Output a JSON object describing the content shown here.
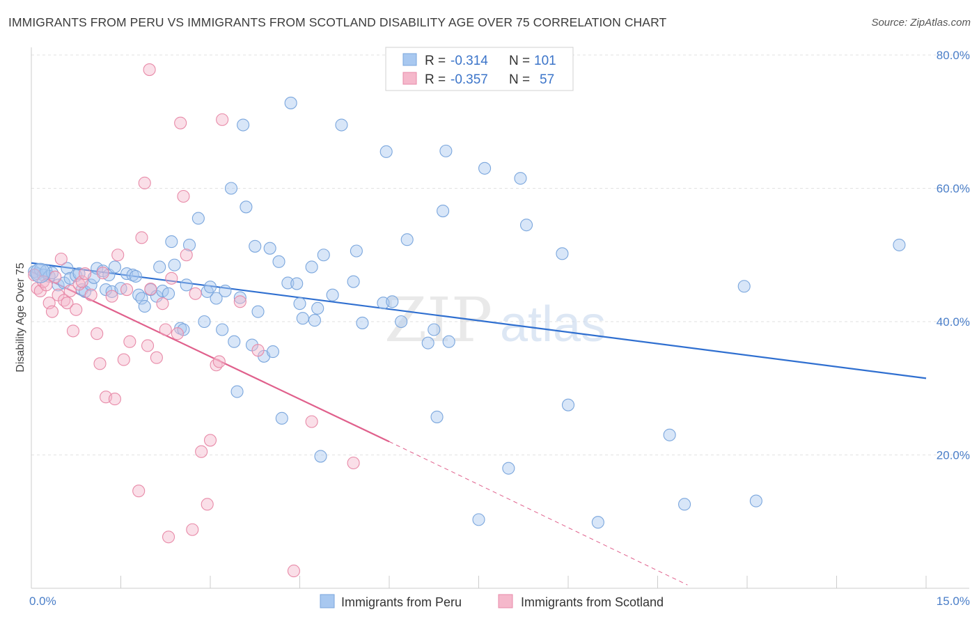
{
  "title": "IMMIGRANTS FROM PERU VS IMMIGRANTS FROM SCOTLAND DISABILITY AGE OVER 75 CORRELATION CHART",
  "source": "Source: ZipAtlas.com",
  "watermark": {
    "zip": "ZIP",
    "atlas": "atlas"
  },
  "legend": {
    "r_label": "R =",
    "n_label": "N =",
    "series": [
      {
        "r": "-0.314",
        "n": "101",
        "color": "#a8c8f0",
        "stroke": "#7aa6dd"
      },
      {
        "r": "-0.357",
        "n": "57",
        "color": "#f5b8cb",
        "stroke": "#e88aa8"
      }
    ]
  },
  "bottom_legend": [
    "Immigrants from Peru",
    "Immigrants from Scotland"
  ],
  "chart_data": {
    "type": "scatter",
    "title": "IMMIGRANTS FROM PERU VS IMMIGRANTS FROM SCOTLAND DISABILITY AGE OVER 75 CORRELATION CHART",
    "xlabel": "",
    "ylabel": "Disability Age Over 75",
    "xlim": [
      0,
      15
    ],
    "ylim": [
      0,
      80
    ],
    "x_tick_labels": [
      "0.0%",
      "15.0%"
    ],
    "y_ticks": [
      20,
      40,
      60,
      80
    ],
    "y_tick_labels": [
      "20.0%",
      "40.0%",
      "60.0%",
      "80.0%"
    ],
    "grid": true,
    "series": [
      {
        "name": "Immigrants from Peru",
        "color": "#7aa6dd",
        "fill": "#a8c8f0",
        "line_color": "#2f6fd0",
        "trend": [
          [
            0,
            48.8
          ],
          [
            15,
            31.5
          ]
        ],
        "points": [
          [
            0.05,
            47.5
          ],
          [
            0.1,
            47.2
          ],
          [
            0.15,
            47.8
          ],
          [
            0.2,
            47.0
          ],
          [
            0.25,
            47.6
          ],
          [
            0.3,
            46.8
          ],
          [
            0.35,
            47.3
          ],
          [
            0.45,
            45.5
          ],
          [
            0.55,
            45.8
          ],
          [
            0.6,
            48.0
          ],
          [
            0.65,
            46.5
          ],
          [
            0.75,
            46.9
          ],
          [
            0.8,
            47.2
          ],
          [
            0.85,
            44.8
          ],
          [
            0.9,
            44.5
          ],
          [
            1.0,
            45.5
          ],
          [
            1.05,
            46.6
          ],
          [
            1.1,
            48.0
          ],
          [
            1.2,
            47.6
          ],
          [
            1.25,
            44.8
          ],
          [
            1.3,
            47.0
          ],
          [
            1.35,
            44.5
          ],
          [
            1.4,
            48.2
          ],
          [
            1.5,
            45.0
          ],
          [
            1.6,
            47.2
          ],
          [
            1.7,
            47.0
          ],
          [
            1.75,
            46.8
          ],
          [
            1.8,
            44.0
          ],
          [
            1.85,
            43.5
          ],
          [
            1.9,
            42.3
          ],
          [
            2.0,
            44.8
          ],
          [
            2.1,
            43.8
          ],
          [
            2.15,
            48.2
          ],
          [
            2.2,
            44.6
          ],
          [
            2.3,
            44.2
          ],
          [
            2.35,
            52.0
          ],
          [
            2.4,
            48.5
          ],
          [
            2.5,
            39.0
          ],
          [
            2.55,
            38.8
          ],
          [
            2.6,
            45.5
          ],
          [
            2.65,
            51.5
          ],
          [
            2.8,
            55.5
          ],
          [
            2.9,
            40.0
          ],
          [
            2.95,
            44.5
          ],
          [
            3.0,
            45.2
          ],
          [
            3.1,
            43.5
          ],
          [
            3.2,
            38.8
          ],
          [
            3.25,
            44.6
          ],
          [
            3.35,
            60.0
          ],
          [
            3.4,
            37.0
          ],
          [
            3.45,
            29.5
          ],
          [
            3.5,
            43.6
          ],
          [
            3.55,
            69.5
          ],
          [
            3.6,
            57.2
          ],
          [
            3.7,
            36.5
          ],
          [
            3.75,
            51.3
          ],
          [
            3.8,
            41.5
          ],
          [
            3.9,
            34.8
          ],
          [
            4.0,
            51.0
          ],
          [
            4.05,
            35.5
          ],
          [
            4.15,
            49.0
          ],
          [
            4.2,
            25.5
          ],
          [
            4.3,
            45.8
          ],
          [
            4.35,
            72.8
          ],
          [
            4.45,
            45.7
          ],
          [
            4.5,
            42.7
          ],
          [
            4.55,
            40.5
          ],
          [
            4.7,
            48.2
          ],
          [
            4.75,
            40.2
          ],
          [
            4.8,
            42.0
          ],
          [
            4.85,
            19.8
          ],
          [
            4.9,
            50.0
          ],
          [
            5.05,
            44.0
          ],
          [
            5.2,
            69.5
          ],
          [
            5.4,
            46.0
          ],
          [
            5.45,
            50.6
          ],
          [
            5.55,
            39.8
          ],
          [
            5.9,
            42.8
          ],
          [
            5.95,
            65.5
          ],
          [
            6.05,
            43.0
          ],
          [
            6.2,
            40.0
          ],
          [
            6.3,
            52.3
          ],
          [
            6.65,
            36.8
          ],
          [
            6.75,
            38.8
          ],
          [
            6.8,
            25.7
          ],
          [
            6.9,
            56.6
          ],
          [
            6.95,
            65.6
          ],
          [
            7.0,
            37.0
          ],
          [
            7.5,
            10.3
          ],
          [
            7.6,
            63.0
          ],
          [
            8.0,
            18.0
          ],
          [
            8.2,
            61.5
          ],
          [
            8.3,
            54.5
          ],
          [
            8.9,
            50.2
          ],
          [
            9.0,
            27.5
          ],
          [
            9.5,
            9.9
          ],
          [
            10.7,
            23.0
          ],
          [
            10.95,
            12.6
          ],
          [
            11.95,
            45.3
          ],
          [
            12.15,
            13.1
          ],
          [
            14.55,
            51.5
          ]
        ]
      },
      {
        "name": "Immigrants from Scotland",
        "color": "#e88aa8",
        "fill": "#f5b8cb",
        "line_color": "#e0608c",
        "trend": [
          [
            0,
            47.5
          ],
          [
            6.0,
            22.0
          ]
        ],
        "trend_ext": [
          [
            6.0,
            22.0
          ],
          [
            11.0,
            0.5
          ]
        ],
        "points": [
          [
            0.05,
            47.0
          ],
          [
            0.1,
            45.0
          ],
          [
            0.15,
            44.6
          ],
          [
            0.2,
            46.0
          ],
          [
            0.25,
            45.5
          ],
          [
            0.3,
            42.8
          ],
          [
            0.35,
            41.5
          ],
          [
            0.45,
            44.0
          ],
          [
            0.5,
            49.4
          ],
          [
            0.55,
            43.2
          ],
          [
            0.6,
            42.8
          ],
          [
            0.65,
            44.6
          ],
          [
            0.7,
            38.6
          ],
          [
            0.75,
            41.8
          ],
          [
            0.8,
            45.6
          ],
          [
            0.85,
            46.0
          ],
          [
            0.9,
            47.2
          ],
          [
            1.0,
            44.0
          ],
          [
            1.1,
            38.2
          ],
          [
            1.15,
            33.7
          ],
          [
            1.25,
            28.7
          ],
          [
            1.35,
            43.8
          ],
          [
            1.4,
            28.4
          ],
          [
            1.45,
            50.0
          ],
          [
            1.55,
            34.3
          ],
          [
            1.6,
            44.8
          ],
          [
            1.65,
            37.0
          ],
          [
            1.8,
            14.6
          ],
          [
            1.85,
            52.6
          ],
          [
            1.9,
            60.8
          ],
          [
            1.95,
            36.4
          ],
          [
            1.98,
            77.8
          ],
          [
            2.1,
            34.6
          ],
          [
            2.2,
            42.7
          ],
          [
            2.25,
            38.8
          ],
          [
            2.3,
            7.7
          ],
          [
            2.35,
            46.5
          ],
          [
            2.45,
            38.2
          ],
          [
            2.5,
            69.8
          ],
          [
            2.55,
            58.8
          ],
          [
            2.6,
            50.0
          ],
          [
            2.7,
            8.8
          ],
          [
            2.75,
            44.2
          ],
          [
            2.85,
            20.5
          ],
          [
            2.95,
            12.6
          ],
          [
            3.0,
            22.2
          ],
          [
            3.1,
            33.5
          ],
          [
            3.15,
            34.0
          ],
          [
            3.2,
            70.3
          ],
          [
            3.5,
            43.0
          ],
          [
            3.8,
            35.7
          ],
          [
            4.4,
            2.6
          ],
          [
            4.7,
            25.0
          ],
          [
            5.4,
            18.8
          ],
          [
            0.4,
            46.7
          ],
          [
            1.2,
            47.3
          ],
          [
            2.0,
            44.9
          ]
        ]
      }
    ]
  }
}
